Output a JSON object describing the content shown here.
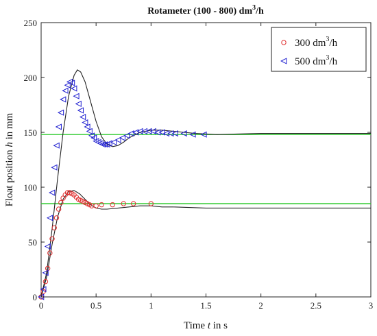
{
  "chart_data": {
    "type": "scatter",
    "title_main": "Rotameter (100 - 800) dm",
    "title_sup": "3",
    "title_tail": "/h",
    "xlabel_pre": "Time ",
    "xlabel_var": "t",
    "xlabel_post": " in s",
    "ylabel_pre": "Float position ",
    "ylabel_var": "h",
    "ylabel_post": " in mm",
    "xlim": [
      0,
      3
    ],
    "ylim": [
      0,
      250
    ],
    "xticks": [
      "0",
      "0.5",
      "1",
      "1.5",
      "2",
      "2.5",
      "3"
    ],
    "xtick_values": [
      0,
      0.5,
      1,
      1.5,
      2,
      2.5,
      3
    ],
    "yticks": [
      "0",
      "50",
      "100",
      "150",
      "200",
      "250"
    ],
    "ytick_values": [
      0,
      50,
      100,
      150,
      200,
      250
    ],
    "grid": false,
    "legend_position": "top-right",
    "legend": [
      {
        "label_pre": "300 dm",
        "label_sup": "3",
        "label_post": "/h",
        "color": "#e03030",
        "marker": "circle"
      },
      {
        "label_pre": "500 dm",
        "label_sup": "3",
        "label_post": "/h",
        "color": "#2020d0",
        "marker": "triangle-left"
      }
    ],
    "series": [
      {
        "color": "#e03030",
        "marker": "circle",
        "points": [
          [
            0,
            0
          ],
          [
            0.02,
            5
          ],
          [
            0.04,
            14
          ],
          [
            0.06,
            26
          ],
          [
            0.08,
            40
          ],
          [
            0.1,
            53
          ],
          [
            0.12,
            63
          ],
          [
            0.14,
            72
          ],
          [
            0.16,
            80
          ],
          [
            0.18,
            86
          ],
          [
            0.2,
            90
          ],
          [
            0.22,
            93
          ],
          [
            0.24,
            95
          ],
          [
            0.26,
            95
          ],
          [
            0.28,
            94
          ],
          [
            0.3,
            93
          ],
          [
            0.32,
            91
          ],
          [
            0.34,
            89
          ],
          [
            0.36,
            88
          ],
          [
            0.38,
            87
          ],
          [
            0.4,
            86
          ],
          [
            0.42,
            85
          ],
          [
            0.44,
            84
          ],
          [
            0.46,
            83
          ],
          [
            0.5,
            83
          ],
          [
            0.55,
            84
          ],
          [
            0.65,
            84
          ],
          [
            0.75,
            85
          ],
          [
            0.84,
            85
          ],
          [
            1.0,
            85
          ]
        ]
      },
      {
        "color": "#2020d0",
        "marker": "triangle-left",
        "points": [
          [
            0,
            0
          ],
          [
            0.02,
            7
          ],
          [
            0.04,
            22
          ],
          [
            0.06,
            46
          ],
          [
            0.08,
            72
          ],
          [
            0.1,
            95
          ],
          [
            0.12,
            118
          ],
          [
            0.14,
            138
          ],
          [
            0.16,
            155
          ],
          [
            0.18,
            168
          ],
          [
            0.2,
            180
          ],
          [
            0.22,
            188
          ],
          [
            0.24,
            193
          ],
          [
            0.26,
            196
          ],
          [
            0.28,
            195
          ],
          [
            0.3,
            190
          ],
          [
            0.32,
            183
          ],
          [
            0.34,
            176
          ],
          [
            0.36,
            170
          ],
          [
            0.38,
            164
          ],
          [
            0.4,
            159
          ],
          [
            0.42,
            155
          ],
          [
            0.44,
            151
          ],
          [
            0.46,
            147
          ],
          [
            0.48,
            145
          ],
          [
            0.5,
            142
          ],
          [
            0.52,
            141
          ],
          [
            0.54,
            140
          ],
          [
            0.56,
            139
          ],
          [
            0.58,
            139
          ],
          [
            0.6,
            139
          ],
          [
            0.62,
            140
          ],
          [
            0.66,
            141
          ],
          [
            0.7,
            143
          ],
          [
            0.74,
            145
          ],
          [
            0.78,
            147
          ],
          [
            0.82,
            149
          ],
          [
            0.86,
            150
          ],
          [
            0.9,
            151
          ],
          [
            0.94,
            151
          ],
          [
            0.98,
            151
          ],
          [
            1.02,
            151
          ],
          [
            1.06,
            150
          ],
          [
            1.1,
            150
          ],
          [
            1.14,
            149
          ],
          [
            1.18,
            149
          ],
          [
            1.22,
            149
          ],
          [
            1.3,
            149
          ],
          [
            1.38,
            148
          ],
          [
            1.48,
            148
          ]
        ]
      }
    ],
    "model_curves": [
      {
        "color": "#222222",
        "points": [
          [
            0,
            0
          ],
          [
            0.05,
            18
          ],
          [
            0.1,
            48
          ],
          [
            0.15,
            73
          ],
          [
            0.2,
            89
          ],
          [
            0.25,
            96
          ],
          [
            0.3,
            97
          ],
          [
            0.35,
            94
          ],
          [
            0.4,
            89
          ],
          [
            0.45,
            84
          ],
          [
            0.5,
            81
          ],
          [
            0.55,
            80
          ],
          [
            0.6,
            80
          ],
          [
            0.7,
            81
          ],
          [
            0.8,
            82
          ],
          [
            0.9,
            83
          ],
          [
            1.0,
            83
          ],
          [
            1.1,
            82
          ],
          [
            1.2,
            82
          ],
          [
            1.5,
            81
          ],
          [
            2.0,
            81
          ],
          [
            2.5,
            81
          ],
          [
            3.0,
            81
          ]
        ]
      },
      {
        "color": "#222222",
        "points": [
          [
            0,
            0
          ],
          [
            0.05,
            22
          ],
          [
            0.1,
            62
          ],
          [
            0.15,
            108
          ],
          [
            0.2,
            150
          ],
          [
            0.25,
            183
          ],
          [
            0.3,
            202
          ],
          [
            0.33,
            207
          ],
          [
            0.36,
            205
          ],
          [
            0.4,
            196
          ],
          [
            0.45,
            178
          ],
          [
            0.5,
            160
          ],
          [
            0.55,
            146
          ],
          [
            0.6,
            139
          ],
          [
            0.65,
            137
          ],
          [
            0.7,
            138
          ],
          [
            0.75,
            141
          ],
          [
            0.8,
            145
          ],
          [
            0.9,
            150
          ],
          [
            1.0,
            152
          ],
          [
            1.1,
            152
          ],
          [
            1.2,
            151
          ],
          [
            1.4,
            149
          ],
          [
            1.6,
            148
          ],
          [
            2.0,
            149
          ],
          [
            2.5,
            149
          ],
          [
            3.0,
            149
          ]
        ]
      }
    ],
    "reference_lines": [
      {
        "y": 85,
        "color": "#33cc33"
      },
      {
        "y": 148,
        "color": "#33cc33"
      }
    ]
  }
}
